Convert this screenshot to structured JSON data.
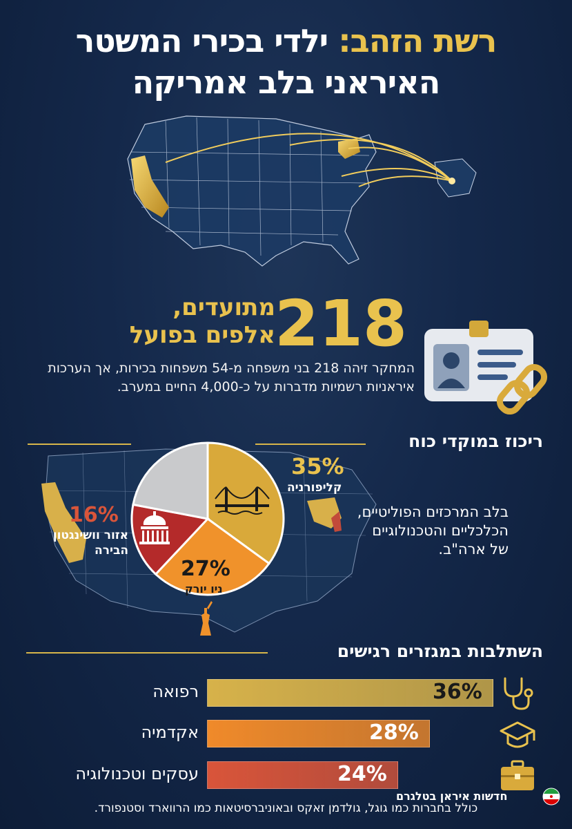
{
  "title": {
    "part_gold": "רשת הזהב:",
    "part_white": "ילדי בכירי המשטר",
    "line2": "האיראני בלב אמריקה"
  },
  "stats": {
    "big_number": "218",
    "doc_line1": "מתועדים,",
    "doc_line2": "אלפים בפועל",
    "description": "המחקר זיהה 218 בני משפחה מ-54 משפחות בכירות, אך הערכות איראניות רשמיות מדברות על כ-4,000 החיים במערב."
  },
  "section_concentration": {
    "heading": "ריכוז במוקדי כוח",
    "hub_text": "בלב המרכזים הפוליטיים, הכלכליים והטכנולוגיים של ארה\"ב."
  },
  "section_sectors": {
    "heading": "השתלבות במגזרים רגישים"
  },
  "chart_data": [
    {
      "type": "pie",
      "slices": [
        {
          "label": "קליפורניה",
          "value": 35,
          "display": "35%",
          "color": "#d9a93a"
        },
        {
          "label": "ניו יורק",
          "value": 27,
          "display": "27%",
          "color": "#f0922b"
        },
        {
          "label": "אזור וושינגטון הבירה",
          "value": 16,
          "display": "16%",
          "color": "#b42a2a"
        },
        {
          "label": "",
          "value": 22,
          "display": "",
          "color": "#c9cacc"
        }
      ]
    },
    {
      "type": "bar",
      "categories": [
        "רפואה",
        "אקדמיה",
        "עסקים וטכנולוגיה"
      ],
      "values": [
        36,
        28,
        24
      ],
      "display": [
        "36%",
        "28%",
        "24%"
      ],
      "colors": [
        "#d7b24a",
        "#f08a2a",
        "#d9553a"
      ],
      "icons": [
        "stethoscope-icon",
        "graduation-cap-icon",
        "briefcase-icon"
      ]
    }
  ],
  "footer": {
    "note": "כולל בחברות כמו גוגל, גולדמן זאקס ובאוניברסיטאות כמו הרווארד וסטנפורד.",
    "brand": "חדשות איראן בטלגרם"
  }
}
